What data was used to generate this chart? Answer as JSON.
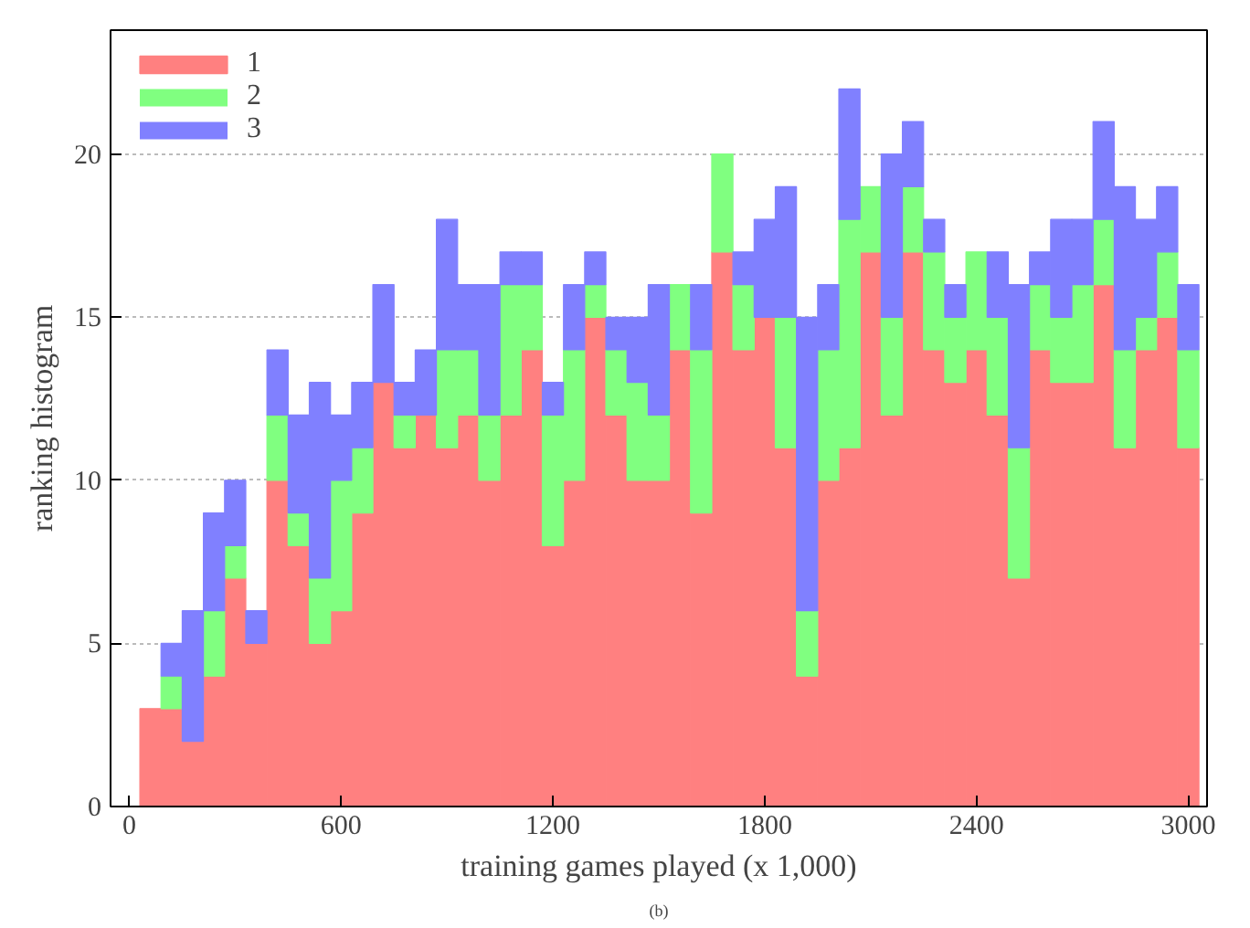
{
  "chart_data": {
    "type": "bar",
    "stacked": true,
    "xlabel": "training games played (x 1,000)",
    "ylabel": "ranking histogram",
    "annotations": [
      "(b)"
    ],
    "x": [
      60,
      120,
      180,
      240,
      300,
      360,
      420,
      480,
      540,
      600,
      660,
      720,
      780,
      840,
      900,
      960,
      1020,
      1080,
      1140,
      1200,
      1260,
      1320,
      1380,
      1440,
      1500,
      1560,
      1620,
      1680,
      1740,
      1800,
      1860,
      1920,
      1980,
      2040,
      2100,
      2160,
      2220,
      2280,
      2340,
      2400,
      2460,
      2520,
      2580,
      2640,
      2700,
      2760,
      2820,
      2880,
      2940,
      3000
    ],
    "series": [
      {
        "name": "1",
        "color": "#ff8080",
        "values": [
          3,
          3,
          2,
          4,
          7,
          5,
          10,
          8,
          5,
          6,
          9,
          13,
          11,
          12,
          11,
          12,
          10,
          12,
          14,
          8,
          10,
          15,
          12,
          10,
          10,
          14,
          9,
          17,
          14,
          15,
          11,
          4,
          10,
          11,
          17,
          12,
          17,
          14,
          13,
          14,
          12,
          7,
          14,
          13,
          13,
          16,
          11,
          14,
          15,
          11
        ]
      },
      {
        "name": "2",
        "color": "#80ff80",
        "values": [
          0,
          1,
          0,
          2,
          1,
          0,
          2,
          1,
          2,
          4,
          2,
          0,
          1,
          0,
          3,
          2,
          2,
          4,
          2,
          4,
          4,
          1,
          2,
          3,
          2,
          2,
          5,
          3,
          2,
          0,
          4,
          2,
          4,
          7,
          2,
          3,
          2,
          3,
          2,
          3,
          3,
          4,
          2,
          2,
          3,
          2,
          3,
          1,
          2,
          3
        ]
      },
      {
        "name": "3",
        "color": "#8080ff",
        "values": [
          0,
          1,
          4,
          3,
          2,
          1,
          2,
          3,
          6,
          2,
          2,
          3,
          1,
          2,
          4,
          2,
          4,
          1,
          1,
          1,
          2,
          1,
          1,
          2,
          4,
          0,
          2,
          0,
          1,
          3,
          4,
          9,
          2,
          4,
          0,
          5,
          2,
          1,
          1,
          0,
          2,
          5,
          1,
          3,
          2,
          3,
          5,
          3,
          2,
          2
        ]
      }
    ],
    "xlim": [
      -53,
      3053
    ],
    "ylim": [
      0,
      23.8
    ],
    "xticks": [
      0,
      600,
      1200,
      1800,
      2400,
      3000
    ],
    "yticks": [
      0,
      5,
      10,
      15,
      20
    ],
    "grid": "y",
    "legend": "top left"
  }
}
